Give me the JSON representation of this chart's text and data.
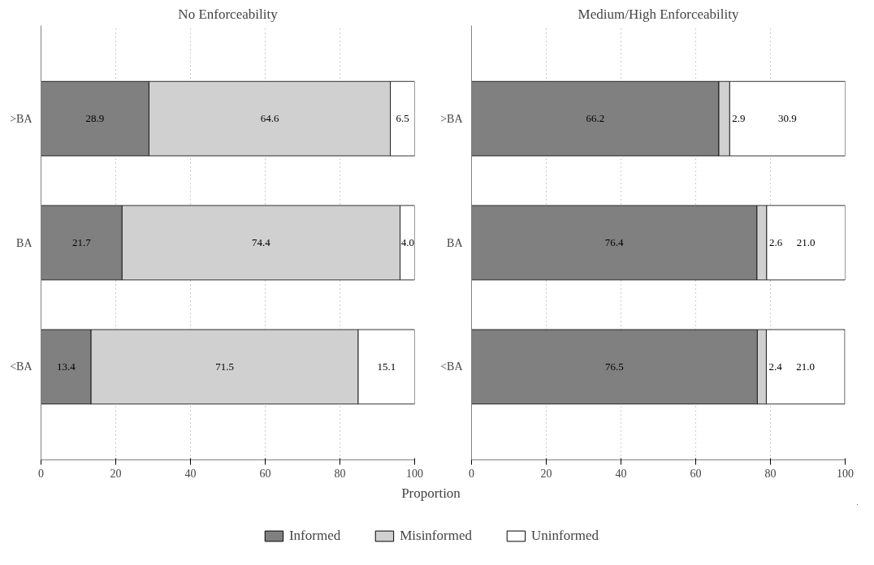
{
  "chart_data": [
    {
      "type": "bar",
      "orientation": "horizontal",
      "stacked": true,
      "title": "No Enforceability",
      "xlabel": "Proportion",
      "categories": [
        ">BA",
        "BA",
        "<BA"
      ],
      "xlim": [
        0,
        100
      ],
      "xticks": [
        0,
        20,
        40,
        60,
        80,
        100
      ],
      "grid": "x",
      "legend": "bottom",
      "series": [
        {
          "name": "Informed",
          "color": "#808080",
          "values": [
            28.9,
            21.7,
            13.4
          ],
          "value_labels": [
            "28.9",
            "21.7",
            "13.4"
          ]
        },
        {
          "name": "Misinformed",
          "color": "#d0d0d0",
          "values": [
            64.6,
            74.4,
            71.5
          ],
          "value_labels": [
            "64.6",
            "74.4",
            "71.5"
          ]
        },
        {
          "name": "Uninformed",
          "color": "#ffffff",
          "values": [
            6.5,
            4.0,
            15.1
          ],
          "value_labels": [
            "6.5",
            "4.0",
            "15.1"
          ]
        }
      ]
    },
    {
      "type": "bar",
      "orientation": "horizontal",
      "stacked": true,
      "title": "Medium/High Enforceability",
      "categories": [
        ">BA",
        "BA",
        "<BA"
      ],
      "xlim": [
        0,
        100
      ],
      "xticks": [
        0,
        20,
        40,
        60,
        80,
        100
      ],
      "grid": "x",
      "series": [
        {
          "color": "#808080",
          "values": [
            66.2,
            76.4,
            76.5
          ],
          "value_labels": [
            "66.2",
            "76.4",
            "76.5"
          ]
        },
        {
          "color": "#d0d0d0",
          "values": [
            2.9,
            2.6,
            2.4
          ],
          "value_labels": [
            "2.9",
            "2.6",
            "2.4"
          ]
        },
        {
          "color": "#ffffff",
          "values": [
            30.9,
            21.0,
            21.0
          ],
          "value_labels": [
            "30.9",
            "21.0",
            "21.0"
          ]
        }
      ]
    }
  ]
}
